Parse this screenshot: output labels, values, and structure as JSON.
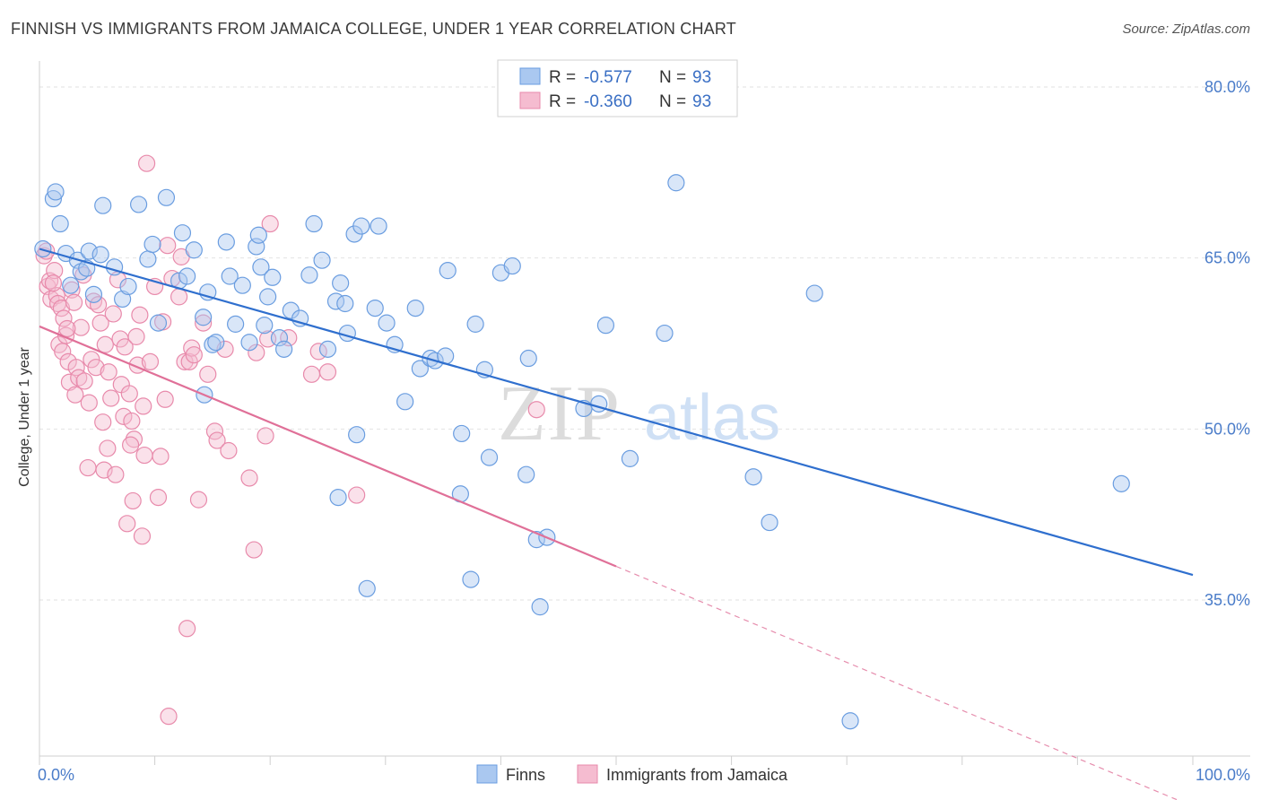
{
  "header": {
    "title": "FINNISH VS IMMIGRANTS FROM JAMAICA COLLEGE, UNDER 1 YEAR CORRELATION CHART",
    "source": "Source: ZipAtlas.com"
  },
  "watermark": {
    "part1": "ZIP",
    "part2": "atlas"
  },
  "legend": {
    "r_label": "R = ",
    "n_label": "N = ",
    "series": [
      {
        "r": "-0.577",
        "n": "93"
      },
      {
        "r": "-0.360",
        "n": "93"
      }
    ]
  },
  "chart_data": {
    "type": "scatter",
    "ylabel": "College, Under 1 year",
    "xlim": [
      0,
      100
    ],
    "ylim": [
      20,
      83
    ],
    "x_tick_labels": {
      "min": "0.0%",
      "max": "100.0%"
    },
    "y_ticks": [
      {
        "value": 80,
        "label": "80.0%"
      },
      {
        "value": 65,
        "label": "65.0%"
      },
      {
        "value": 50,
        "label": "50.0%"
      },
      {
        "value": 35,
        "label": "35.0%"
      }
    ],
    "grid": "horizontal dashed",
    "legend_position": "top-center",
    "series": [
      {
        "name": "Finns",
        "color": "#6a9de0",
        "fill": "#aac8f0",
        "trend": {
          "x0": 0,
          "y0": 65.8,
          "x1": 100,
          "y1": 37.2,
          "dashed_from": null
        },
        "points": [
          [
            0.3,
            65.8
          ],
          [
            1.2,
            70.2
          ],
          [
            1.4,
            70.8
          ],
          [
            1.8,
            68.0
          ],
          [
            2.3,
            65.4
          ],
          [
            2.7,
            62.6
          ],
          [
            3.3,
            64.8
          ],
          [
            3.6,
            63.8
          ],
          [
            4.3,
            65.6
          ],
          [
            4.7,
            61.8
          ],
          [
            5.3,
            65.3
          ],
          [
            5.5,
            69.6
          ],
          [
            6.5,
            64.2
          ],
          [
            7.2,
            61.4
          ],
          [
            7.7,
            62.5
          ],
          [
            8.6,
            69.7
          ],
          [
            9.4,
            64.9
          ],
          [
            9.8,
            66.2
          ],
          [
            10.3,
            59.3
          ],
          [
            11.0,
            70.3
          ],
          [
            12.1,
            63.0
          ],
          [
            12.4,
            67.2
          ],
          [
            12.8,
            63.4
          ],
          [
            13.4,
            65.7
          ],
          [
            14.2,
            59.8
          ],
          [
            14.6,
            62.0
          ],
          [
            15.0,
            57.4
          ],
          [
            15.3,
            57.6
          ],
          [
            16.2,
            66.4
          ],
          [
            16.5,
            63.4
          ],
          [
            17.0,
            59.2
          ],
          [
            17.6,
            62.6
          ],
          [
            18.2,
            57.6
          ],
          [
            18.8,
            66.0
          ],
          [
            19.0,
            67.0
          ],
          [
            19.2,
            64.2
          ],
          [
            19.5,
            59.1
          ],
          [
            19.8,
            61.6
          ],
          [
            20.2,
            63.3
          ],
          [
            20.8,
            58.0
          ],
          [
            21.2,
            57.0
          ],
          [
            21.8,
            60.4
          ],
          [
            22.6,
            59.7
          ],
          [
            23.4,
            63.5
          ],
          [
            23.8,
            68.0
          ],
          [
            24.5,
            64.8
          ],
          [
            25.0,
            57.0
          ],
          [
            25.7,
            61.2
          ],
          [
            26.1,
            62.8
          ],
          [
            26.5,
            61.0
          ],
          [
            26.7,
            58.4
          ],
          [
            27.3,
            67.1
          ],
          [
            27.5,
            49.5
          ],
          [
            27.9,
            67.8
          ],
          [
            28.4,
            36.0
          ],
          [
            29.1,
            60.6
          ],
          [
            29.4,
            67.8
          ],
          [
            30.1,
            59.3
          ],
          [
            30.8,
            57.4
          ],
          [
            31.7,
            52.4
          ],
          [
            32.6,
            60.6
          ],
          [
            33.0,
            55.3
          ],
          [
            33.9,
            56.2
          ],
          [
            34.3,
            56.0
          ],
          [
            35.2,
            56.4
          ],
          [
            35.4,
            63.9
          ],
          [
            36.5,
            44.3
          ],
          [
            37.4,
            36.8
          ],
          [
            37.8,
            59.2
          ],
          [
            38.6,
            55.2
          ],
          [
            39.0,
            47.5
          ],
          [
            40.0,
            63.7
          ],
          [
            41.0,
            64.3
          ],
          [
            42.2,
            46.0
          ],
          [
            42.4,
            56.2
          ],
          [
            43.1,
            40.3
          ],
          [
            43.4,
            34.4
          ],
          [
            44.0,
            40.5
          ],
          [
            47.2,
            51.8
          ],
          [
            48.5,
            52.2
          ],
          [
            49.1,
            59.1
          ],
          [
            51.2,
            47.4
          ],
          [
            54.2,
            58.4
          ],
          [
            55.2,
            71.6
          ],
          [
            61.9,
            45.8
          ],
          [
            63.3,
            41.8
          ],
          [
            67.2,
            61.9
          ],
          [
            70.3,
            24.4
          ],
          [
            93.8,
            45.2
          ],
          [
            25.9,
            44.0
          ],
          [
            4.1,
            64.1
          ],
          [
            14.3,
            53.0
          ],
          [
            36.6,
            49.6
          ]
        ]
      },
      {
        "name": "Immigrants from Jamaica",
        "color": "#e88aab",
        "fill": "#f5bcd0",
        "trend": {
          "x0": 0,
          "y0": 59.0,
          "x1": 100,
          "y1": 16.9,
          "dashed_from": 50
        },
        "points": [
          [
            0.4,
            65.2
          ],
          [
            0.7,
            62.5
          ],
          [
            0.9,
            63.0
          ],
          [
            1.0,
            61.4
          ],
          [
            1.3,
            63.9
          ],
          [
            1.5,
            61.7
          ],
          [
            1.6,
            61.0
          ],
          [
            1.7,
            57.4
          ],
          [
            1.9,
            60.6
          ],
          [
            2.0,
            56.8
          ],
          [
            2.1,
            59.7
          ],
          [
            2.3,
            58.2
          ],
          [
            2.5,
            55.9
          ],
          [
            2.6,
            54.1
          ],
          [
            2.8,
            62.2
          ],
          [
            3.0,
            61.1
          ],
          [
            3.2,
            55.4
          ],
          [
            3.4,
            54.5
          ],
          [
            3.6,
            58.9
          ],
          [
            3.8,
            63.5
          ],
          [
            3.9,
            54.2
          ],
          [
            4.2,
            46.6
          ],
          [
            4.3,
            52.3
          ],
          [
            4.5,
            56.1
          ],
          [
            4.7,
            61.2
          ],
          [
            4.9,
            55.4
          ],
          [
            5.1,
            60.9
          ],
          [
            5.3,
            59.3
          ],
          [
            5.5,
            50.6
          ],
          [
            5.6,
            46.4
          ],
          [
            5.7,
            57.4
          ],
          [
            6.0,
            55.0
          ],
          [
            6.2,
            52.7
          ],
          [
            6.4,
            60.1
          ],
          [
            6.6,
            46.0
          ],
          [
            6.8,
            63.1
          ],
          [
            7.0,
            57.9
          ],
          [
            7.1,
            53.9
          ],
          [
            7.3,
            51.1
          ],
          [
            7.4,
            57.2
          ],
          [
            7.6,
            41.7
          ],
          [
            7.8,
            53.1
          ],
          [
            8.0,
            50.7
          ],
          [
            8.1,
            43.7
          ],
          [
            8.2,
            49.1
          ],
          [
            8.4,
            58.1
          ],
          [
            8.5,
            55.6
          ],
          [
            8.7,
            60.0
          ],
          [
            8.9,
            40.6
          ],
          [
            9.0,
            52.0
          ],
          [
            9.1,
            47.7
          ],
          [
            9.3,
            73.3
          ],
          [
            9.6,
            55.9
          ],
          [
            10.0,
            62.5
          ],
          [
            10.3,
            44.0
          ],
          [
            10.5,
            47.6
          ],
          [
            10.7,
            59.4
          ],
          [
            10.9,
            52.6
          ],
          [
            11.1,
            66.1
          ],
          [
            11.2,
            24.8
          ],
          [
            11.5,
            63.2
          ],
          [
            12.1,
            61.6
          ],
          [
            12.3,
            65.1
          ],
          [
            12.6,
            55.9
          ],
          [
            12.8,
            32.5
          ],
          [
            13.0,
            55.9
          ],
          [
            13.2,
            57.1
          ],
          [
            13.4,
            56.5
          ],
          [
            13.8,
            43.8
          ],
          [
            14.2,
            59.3
          ],
          [
            14.6,
            54.8
          ],
          [
            15.2,
            49.8
          ],
          [
            15.4,
            49.0
          ],
          [
            16.1,
            57.0
          ],
          [
            16.4,
            48.1
          ],
          [
            18.2,
            45.7
          ],
          [
            18.6,
            39.4
          ],
          [
            18.8,
            56.7
          ],
          [
            19.6,
            49.4
          ],
          [
            19.8,
            57.9
          ],
          [
            20.0,
            68.0
          ],
          [
            21.6,
            58.0
          ],
          [
            23.6,
            54.8
          ],
          [
            24.2,
            56.8
          ],
          [
            25.0,
            55.0
          ],
          [
            27.5,
            44.2
          ],
          [
            43.1,
            51.7
          ],
          [
            0.6,
            65.6
          ],
          [
            1.2,
            62.8
          ],
          [
            2.4,
            58.8
          ],
          [
            3.1,
            53.0
          ],
          [
            5.9,
            48.3
          ],
          [
            7.9,
            48.6
          ]
        ]
      }
    ]
  }
}
